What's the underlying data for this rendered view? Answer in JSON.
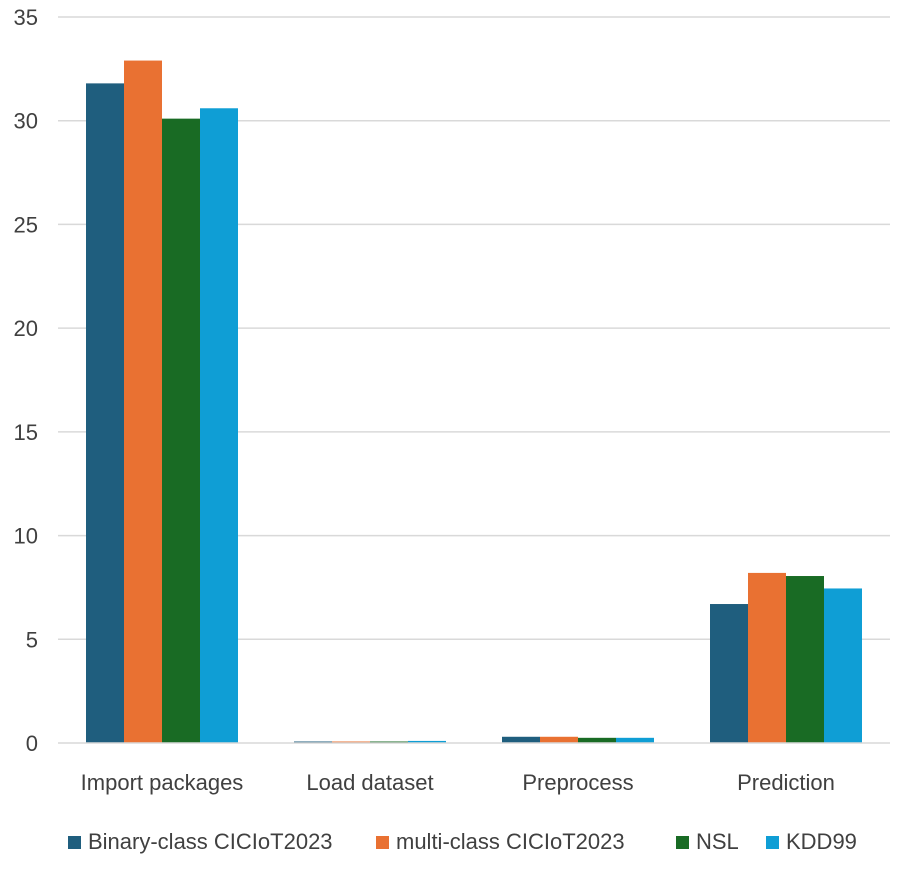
{
  "chart_data": {
    "type": "bar",
    "title": "",
    "xlabel": "",
    "ylabel": "",
    "ylim": [
      0,
      35
    ],
    "yticks": [
      0,
      5,
      10,
      15,
      20,
      25,
      30,
      35
    ],
    "grid": true,
    "legend_position": "bottom",
    "categories": [
      "Import packages",
      "Load dataset",
      "Preprocess",
      "Prediction"
    ],
    "series": [
      {
        "name": "Binary-class CICIoT2023",
        "color": "#1f5e7e",
        "values": [
          31.8,
          0.05,
          0.3,
          6.7
        ]
      },
      {
        "name": "multi-class CICIoT2023",
        "color": "#e97132",
        "values": [
          32.9,
          0.05,
          0.3,
          8.2
        ]
      },
      {
        "name": "NSL",
        "color": "#196b24",
        "values": [
          30.1,
          0.05,
          0.25,
          8.05
        ]
      },
      {
        "name": "KDD99",
        "color": "#0f9ed5",
        "values": [
          30.6,
          0.1,
          0.25,
          7.45
        ]
      }
    ]
  }
}
